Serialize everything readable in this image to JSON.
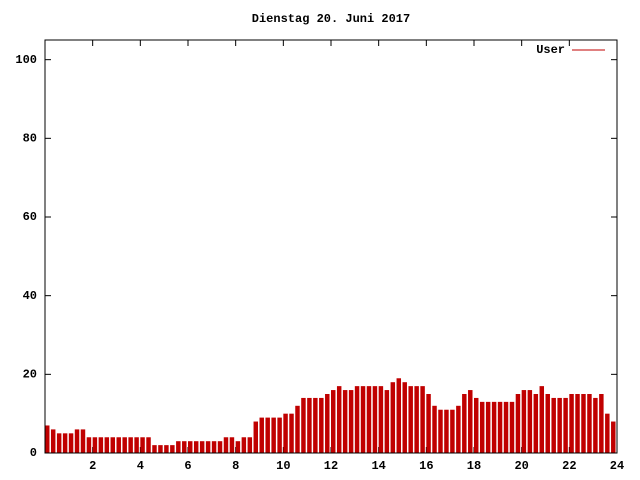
{
  "chart_data": {
    "type": "impulse",
    "title": "Dienstag 20. Juni 2017",
    "x": [
      0,
      0.25,
      0.5,
      0.75,
      1,
      1.25,
      1.5,
      1.75,
      2,
      2.25,
      2.5,
      2.75,
      3,
      3.25,
      3.5,
      3.75,
      4,
      4.25,
      4.5,
      4.75,
      5,
      5.25,
      5.5,
      5.75,
      6,
      6.25,
      6.5,
      6.75,
      7,
      7.25,
      7.5,
      7.75,
      8,
      8.25,
      8.5,
      8.75,
      9,
      9.25,
      9.5,
      9.75,
      10,
      10.25,
      10.5,
      10.75,
      11,
      11.25,
      11.5,
      11.75,
      12,
      12.25,
      12.5,
      12.75,
      13,
      13.25,
      13.5,
      13.75,
      14,
      14.25,
      14.5,
      14.75,
      15,
      15.25,
      15.5,
      15.75,
      16,
      16.25,
      16.5,
      16.75,
      17,
      17.25,
      17.5,
      17.75,
      18,
      18.25,
      18.5,
      18.75,
      19,
      19.25,
      19.5,
      19.75,
      20,
      20.25,
      20.5,
      20.75,
      21,
      21.25,
      21.5,
      21.75,
      22,
      22.25,
      22.5,
      22.75,
      23,
      23.25,
      23.5,
      23.75
    ],
    "series": [
      {
        "name": "User",
        "color": "#c00000",
        "values": [
          7,
          6,
          5,
          5,
          5,
          6,
          6,
          4,
          4,
          4,
          4,
          4,
          4,
          4,
          4,
          4,
          4,
          4,
          2,
          2,
          2,
          2,
          3,
          3,
          3,
          3,
          3,
          3,
          3,
          3,
          4,
          4,
          3,
          4,
          4,
          8,
          9,
          9,
          9,
          9,
          10,
          10,
          12,
          14,
          14,
          14,
          14,
          15,
          16,
          17,
          16,
          16,
          17,
          17,
          17,
          17,
          17,
          16,
          18,
          19,
          18,
          17,
          17,
          17,
          15,
          12,
          11,
          11,
          11,
          12,
          15,
          16,
          14,
          13,
          13,
          13,
          13,
          13,
          13,
          15,
          16,
          16,
          15,
          17,
          15,
          14,
          14,
          14,
          15,
          15,
          15,
          15,
          14,
          15,
          10,
          8
        ]
      }
    ],
    "xlim": [
      0,
      24
    ],
    "xticks": [
      2,
      4,
      6,
      8,
      10,
      12,
      14,
      16,
      18,
      20,
      22,
      24
    ],
    "ylim": [
      0,
      105
    ],
    "yticks": [
      0,
      20,
      40,
      60,
      80,
      100
    ],
    "legend": "top right"
  }
}
